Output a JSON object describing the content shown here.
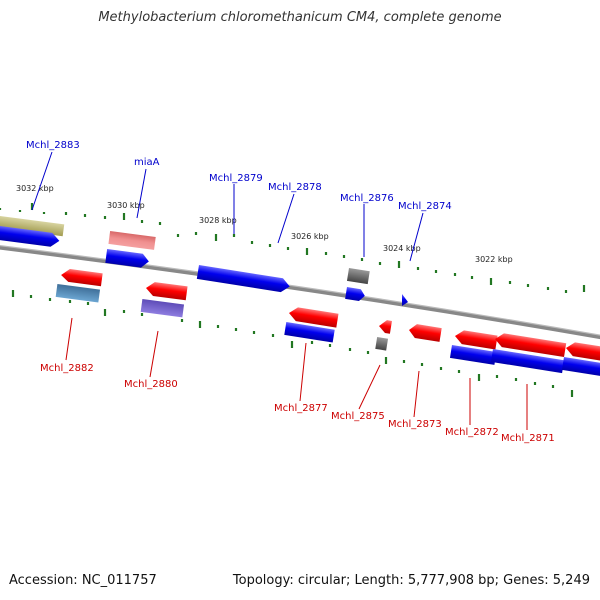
{
  "title": "Methylobacterium chloromethanicum CM4, complete genome",
  "footer": {
    "accession": "Accession: NC_011757",
    "info": "Topology: circular; Length: 5,777,908 bp; Genes: 5,249"
  },
  "colors": {
    "forward_label": "#0000cc",
    "reverse_label": "#cc0000",
    "backbone": "#888888",
    "ticks": "#227722"
  },
  "scale_labels": [
    "3032 kbp",
    "3030 kbp",
    "3028 kbp",
    "3026 kbp",
    "3024 kbp",
    "3022 kbp"
  ],
  "genes_top": [
    "Mchl_2883",
    "miaA",
    "Mchl_2879",
    "Mchl_2878",
    "Mchl_2876",
    "Mchl_2874"
  ],
  "genes_bottom": [
    "Mchl_2882",
    "Mchl_2880",
    "Mchl_2877",
    "Mchl_2875",
    "Mchl_2873",
    "Mchl_2872",
    "Mchl_2871"
  ]
}
